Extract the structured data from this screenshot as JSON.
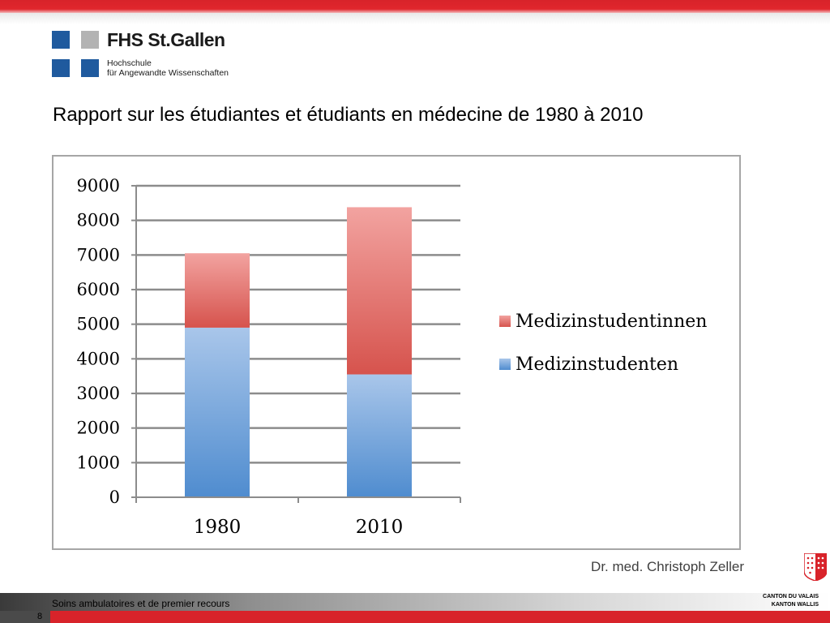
{
  "header": {
    "logo": {
      "name": "FHS St.Gallen",
      "line1": "Hochschule",
      "line2": "für Angewandte Wissenschaften",
      "colors": {
        "blue": "#1f5a9e",
        "grey": "#b3b3b3"
      }
    },
    "title": "Rapport sur les étudiantes et étudiants en médecine de 1980 à 2010"
  },
  "chart_data": {
    "type": "bar",
    "stacked": true,
    "categories": [
      "1980",
      "2010"
    ],
    "series": [
      {
        "name": "Medizinstudenten",
        "values": [
          4900,
          3550
        ],
        "color": "#6a9fd6"
      },
      {
        "name": "Medizinstudentinnen",
        "values": [
          2150,
          4830
        ],
        "color": "#df6a65"
      }
    ],
    "y_ticks": [
      "0",
      "1000",
      "2000",
      "3000",
      "4000",
      "5000",
      "6000",
      "7000",
      "8000",
      "9000"
    ],
    "ylim": [
      0,
      9000
    ],
    "grid": true,
    "legend_position": "right",
    "legend_order": [
      "Medizinstudentinnen",
      "Medizinstudenten"
    ]
  },
  "credit": "Dr. med. Christoph Zeller",
  "footer": {
    "text": "Soins ambulatoires et de premier recours",
    "page": "8",
    "canton_line1": "CANTON DU VALAIS",
    "canton_line2": "KANTON WALLIS"
  },
  "colors": {
    "accent_red": "#d8232a"
  }
}
